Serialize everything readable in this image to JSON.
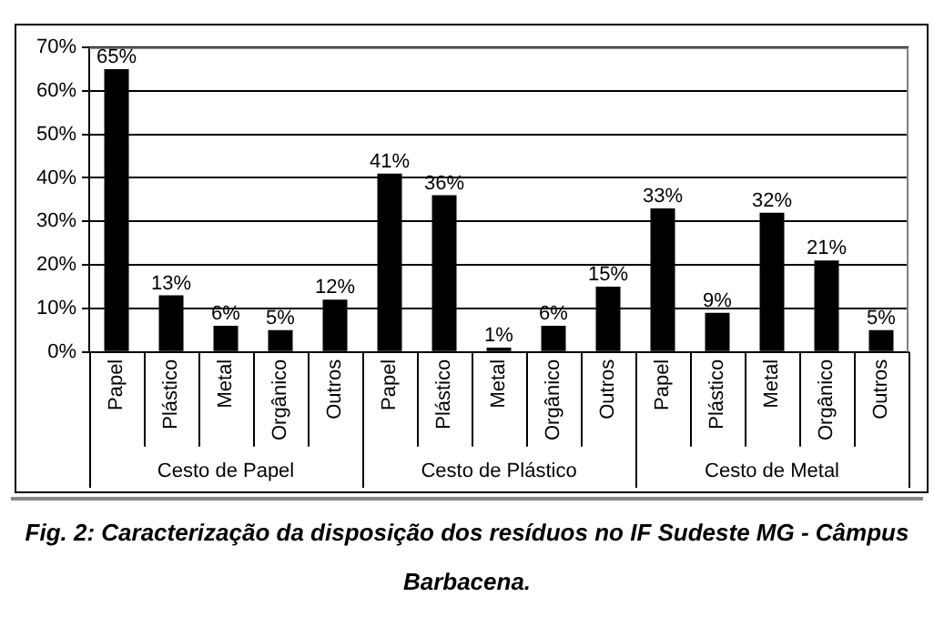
{
  "chart_data": {
    "type": "bar",
    "categories": [
      "Papel",
      "Plástico",
      "Metal",
      "Orgânico",
      "Outros",
      "Papel",
      "Plástico",
      "Metal",
      "Orgânico",
      "Outros",
      "Papel",
      "Plástico",
      "Metal",
      "Orgânico",
      "Outros"
    ],
    "values": [
      65,
      13,
      6,
      5,
      12,
      41,
      36,
      1,
      6,
      15,
      33,
      9,
      32,
      21,
      5
    ],
    "value_labels": [
      "65%",
      "13%",
      "6%",
      "5%",
      "12%",
      "41%",
      "36%",
      "1%",
      "6%",
      "15%",
      "33%",
      "9%",
      "32%",
      "21%",
      "5%"
    ],
    "color": "#000000",
    "ylim": [
      0,
      70
    ],
    "yticks": [
      {
        "value": 0,
        "label": "0%"
      },
      {
        "value": 10,
        "label": "10%"
      },
      {
        "value": 20,
        "label": "20%"
      },
      {
        "value": 30,
        "label": "30%"
      },
      {
        "value": 40,
        "label": "40%"
      },
      {
        "value": 50,
        "label": "50%"
      },
      {
        "value": 60,
        "label": "60%"
      },
      {
        "value": 70,
        "label": "70%"
      }
    ],
    "grid": "y",
    "annotations": [
      "Cesto de Papel",
      "Cesto de Plástico",
      "Cesto de Metal",
      "Fig. 2: Caracterização da disposição dos resíduos no IF Sudeste MG - Câmpus Barbacena."
    ]
  }
}
